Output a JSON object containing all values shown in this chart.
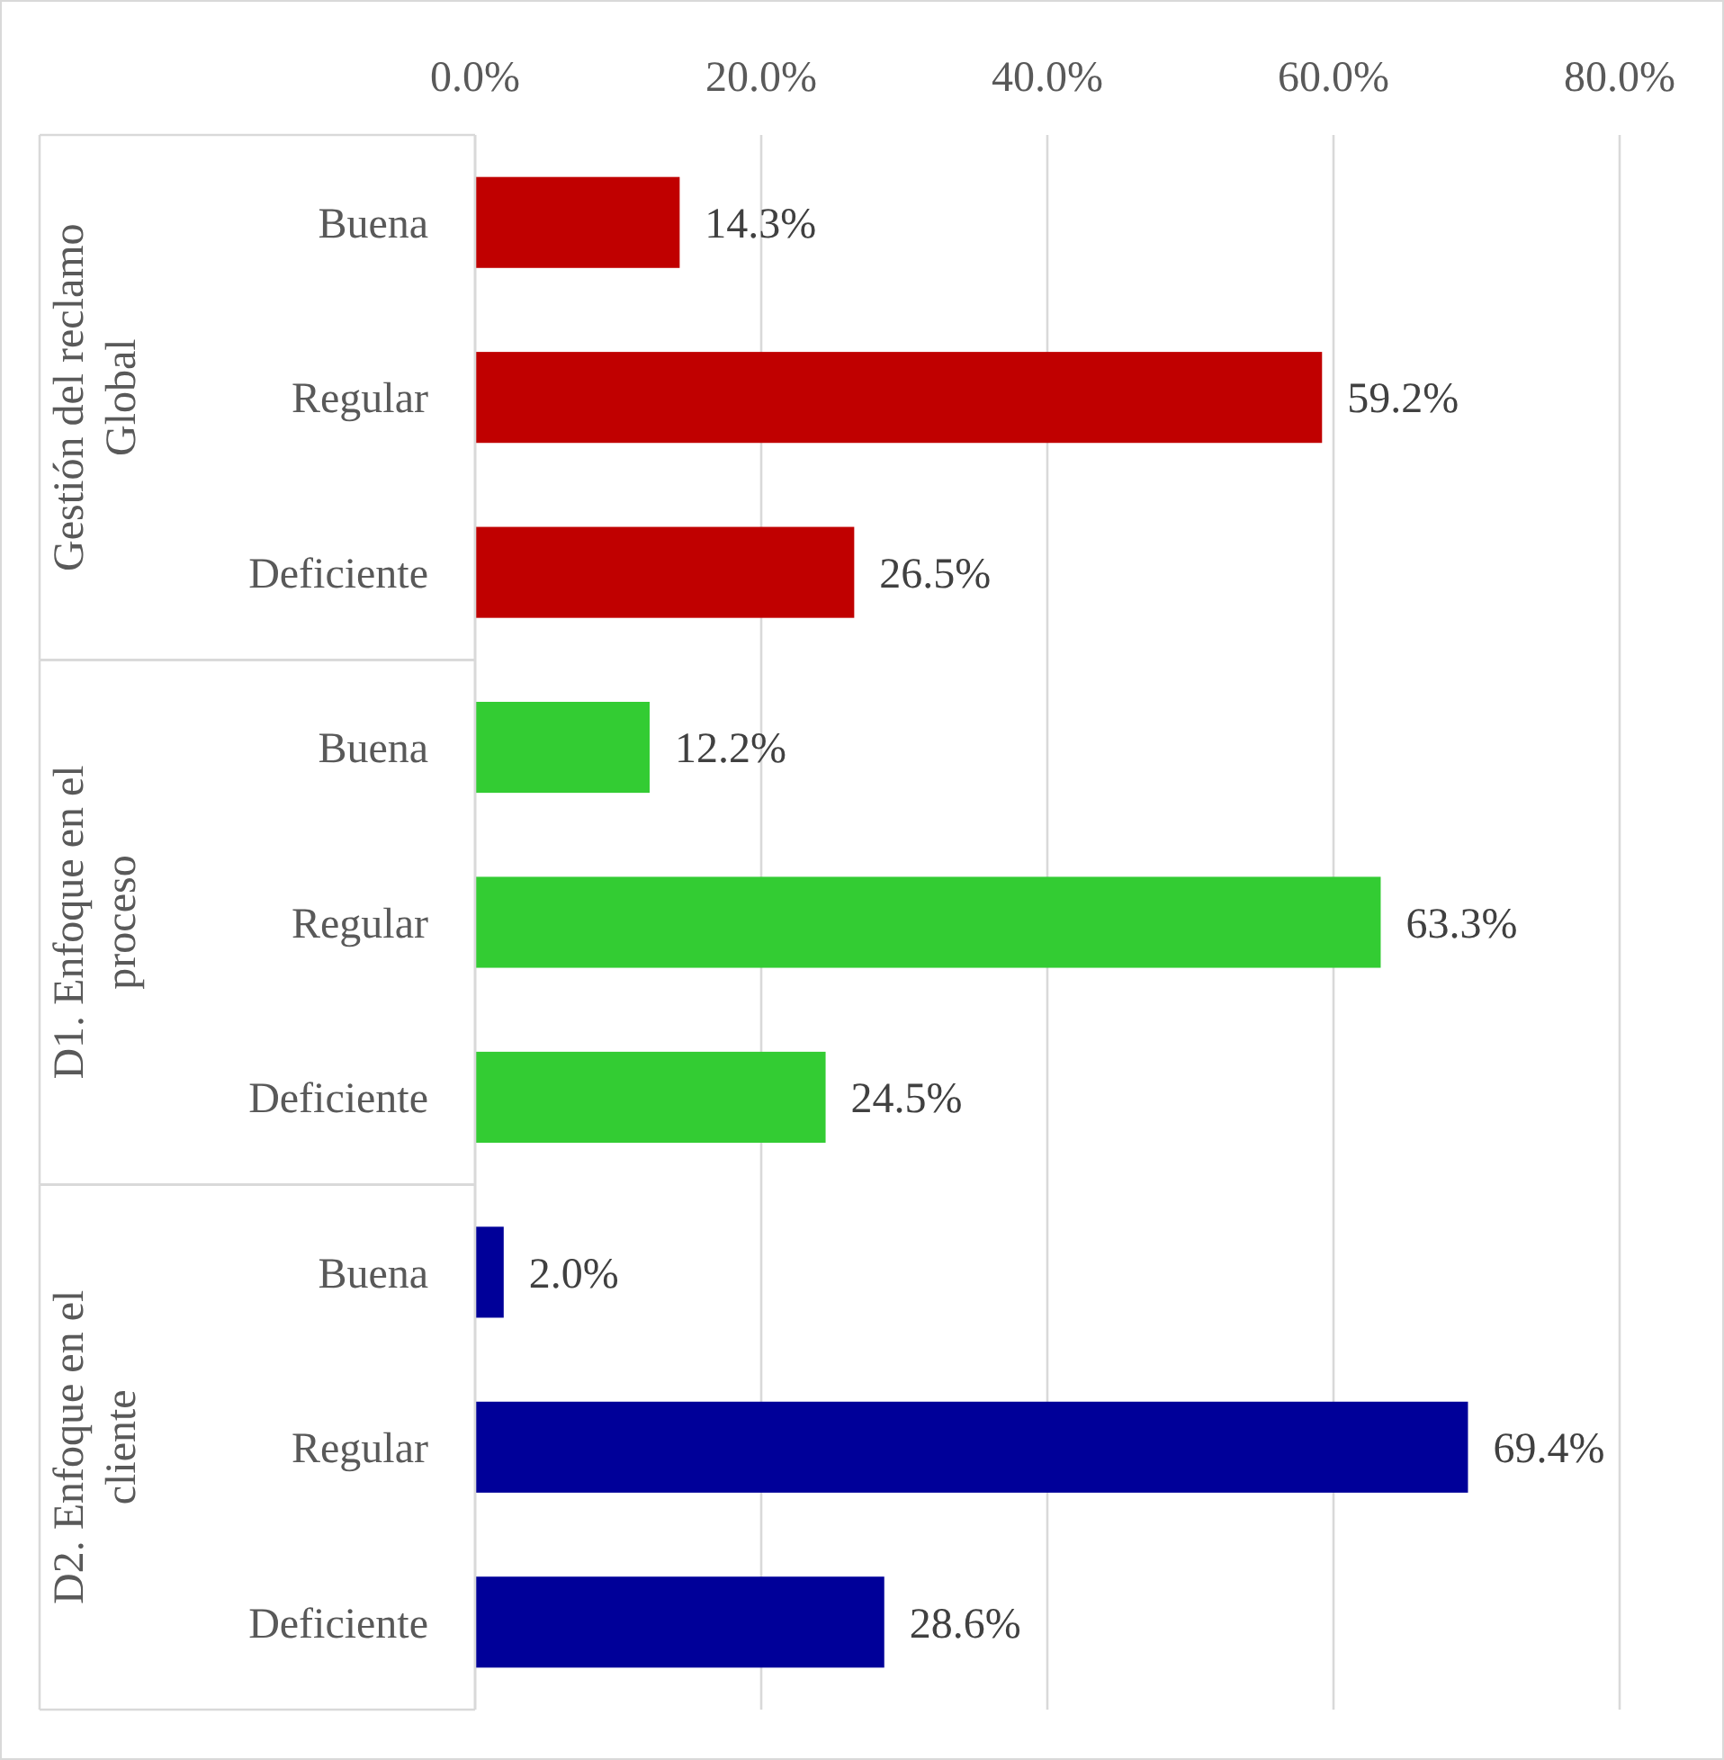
{
  "chart_data": {
    "type": "bar",
    "orientation": "horizontal",
    "categories": [
      "Buena",
      "Regular",
      "Deficiente",
      "Buena",
      "Regular",
      "Deficiente",
      "Buena",
      "Regular",
      "Deficiente"
    ],
    "series": [
      {
        "color": "#c00000",
        "values": [
          14.3,
          59.2,
          26.5,
          null,
          null,
          null,
          null,
          null,
          null
        ],
        "value_labels": [
          "14.3%",
          "59.2%",
          "26.5%",
          null,
          null,
          null,
          null,
          null,
          null
        ]
      },
      {
        "color": "#33cc33",
        "values": [
          null,
          null,
          null,
          12.2,
          63.3,
          24.5,
          null,
          null,
          null
        ],
        "value_labels": [
          null,
          null,
          null,
          "12.2%",
          "63.3%",
          "24.5%",
          null,
          null,
          null
        ]
      },
      {
        "color": "#000099",
        "values": [
          null,
          null,
          null,
          null,
          null,
          null,
          2.0,
          69.4,
          28.6
        ],
        "value_labels": [
          null,
          null,
          null,
          null,
          null,
          null,
          "2.0%",
          "69.4%",
          "28.6%"
        ]
      }
    ],
    "annotations": [
      "Gestión del reclamo Global",
      "D1. Enfoque en el proceso",
      "D2. Enfoque en el cliente"
    ],
    "xlim": [
      0,
      80
    ],
    "xticks": [
      {
        "value": 0,
        "label": "0.0%"
      },
      {
        "value": 20,
        "label": "20.0%"
      },
      {
        "value": 40,
        "label": "40.0%"
      },
      {
        "value": 60,
        "label": "60.0%"
      },
      {
        "value": 80,
        "label": "80.0%"
      }
    ],
    "grid": "x"
  }
}
